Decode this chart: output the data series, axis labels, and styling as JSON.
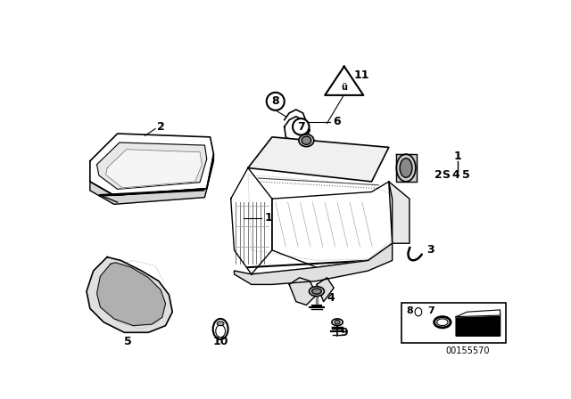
{
  "bg_color": "#ffffff",
  "line_color": "#000000",
  "fig_width": 6.4,
  "fig_height": 4.48,
  "dpi": 100,
  "watermark": "00155570"
}
